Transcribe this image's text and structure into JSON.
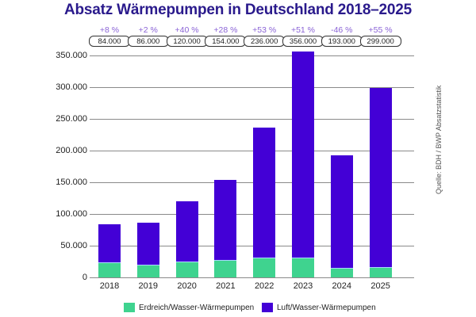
{
  "chart_data": {
    "type": "bar",
    "stacked": true,
    "title": "Absatz Wärmepumpen in Deutschland 2018–2025",
    "xlabel": "",
    "ylabel": "",
    "ylim": [
      0,
      350000
    ],
    "yticks": [
      0,
      50000,
      100000,
      150000,
      200000,
      250000,
      300000,
      350000
    ],
    "ytick_labels": [
      "0",
      "50.000",
      "100.000",
      "150.000",
      "200.000",
      "250.000",
      "300.000",
      "350.000"
    ],
    "grid": true,
    "legend_position": "bottom",
    "categories": [
      "2018",
      "2019",
      "2020",
      "2021",
      "2022",
      "2023",
      "2024",
      "2025"
    ],
    "series": [
      {
        "name": "Erdreich/Wasser-Wärmepumpen",
        "color": "#3fd38f",
        "values": [
          24000,
          20000,
          25000,
          27000,
          31000,
          31000,
          15000,
          16000
        ]
      },
      {
        "name": "Luft/Wasser-Wärmepumpen",
        "color": "#4300d6",
        "values": [
          60000,
          66000,
          95000,
          127000,
          205000,
          325000,
          178000,
          283000
        ]
      }
    ],
    "totals": [
      84000,
      86000,
      120000,
      154000,
      236000,
      356000,
      193000,
      299000
    ],
    "total_labels": [
      "84.000",
      "86.000",
      "120.000",
      "154.000",
      "236.000",
      "356.000",
      "193.000",
      "299.000"
    ],
    "growth_labels": [
      "+8 %",
      "+2 %",
      "+40 %",
      "+28 %",
      "+53 %",
      "+51 %",
      "-46 %",
      "+55 %"
    ],
    "annotations": [
      "Quelle: BDH / BWP Absatzstatistik"
    ]
  },
  "title": "Absatz Wärmepumpen in Deutschland 2018–2025",
  "source": "Quelle: BDH / BWP Absatzstatistik",
  "legend": {
    "erdreich": "Erdreich/Wasser-Wärmepumpen",
    "luft": "Luft/Wasser-Wärmepumpen"
  },
  "colors": {
    "erdreich": "#3fd38f",
    "luft": "#4300d6",
    "title": "#2a1a8c",
    "growth": "#8a63d6"
  }
}
